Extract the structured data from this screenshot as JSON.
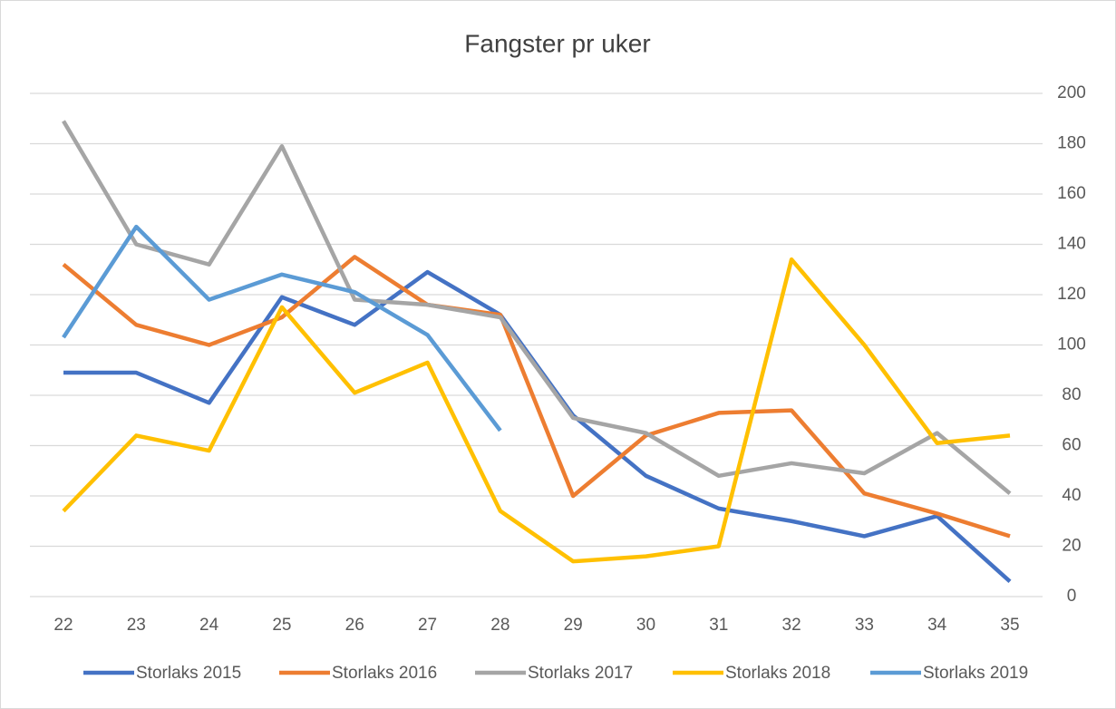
{
  "chart_data": {
    "type": "line",
    "title": "Fangster pr uker",
    "categories": [
      "22",
      "23",
      "24",
      "25",
      "26",
      "27",
      "28",
      "29",
      "30",
      "31",
      "32",
      "33",
      "34",
      "35"
    ],
    "series": [
      {
        "name": "Storlaks 2015",
        "color": "#4472c4",
        "values": [
          89,
          89,
          77,
          119,
          108,
          129,
          112,
          72,
          48,
          35,
          30,
          24,
          32,
          6
        ]
      },
      {
        "name": "Storlaks 2016",
        "color": "#ed7d31",
        "values": [
          132,
          108,
          100,
          111,
          135,
          116,
          112,
          40,
          64,
          73,
          74,
          41,
          33,
          24
        ]
      },
      {
        "name": "Storlaks 2017",
        "color": "#a5a5a5",
        "values": [
          189,
          140,
          132,
          179,
          118,
          116,
          111,
          71,
          65,
          48,
          53,
          49,
          65,
          41
        ]
      },
      {
        "name": "Storlaks 2018",
        "color": "#ffc000",
        "values": [
          34,
          64,
          58,
          115,
          81,
          93,
          34,
          14,
          16,
          20,
          134,
          100,
          61,
          64
        ]
      },
      {
        "name": "Storlaks 2019",
        "color": "#5b9bd5",
        "values": [
          103,
          147,
          118,
          128,
          121,
          104,
          66,
          null,
          null,
          null,
          null,
          null,
          null,
          null
        ]
      }
    ],
    "ylim": [
      0,
      200
    ],
    "yticks": [
      0,
      20,
      40,
      60,
      80,
      100,
      120,
      140,
      160,
      180,
      200
    ],
    "grid": true,
    "legend": "bottom"
  }
}
